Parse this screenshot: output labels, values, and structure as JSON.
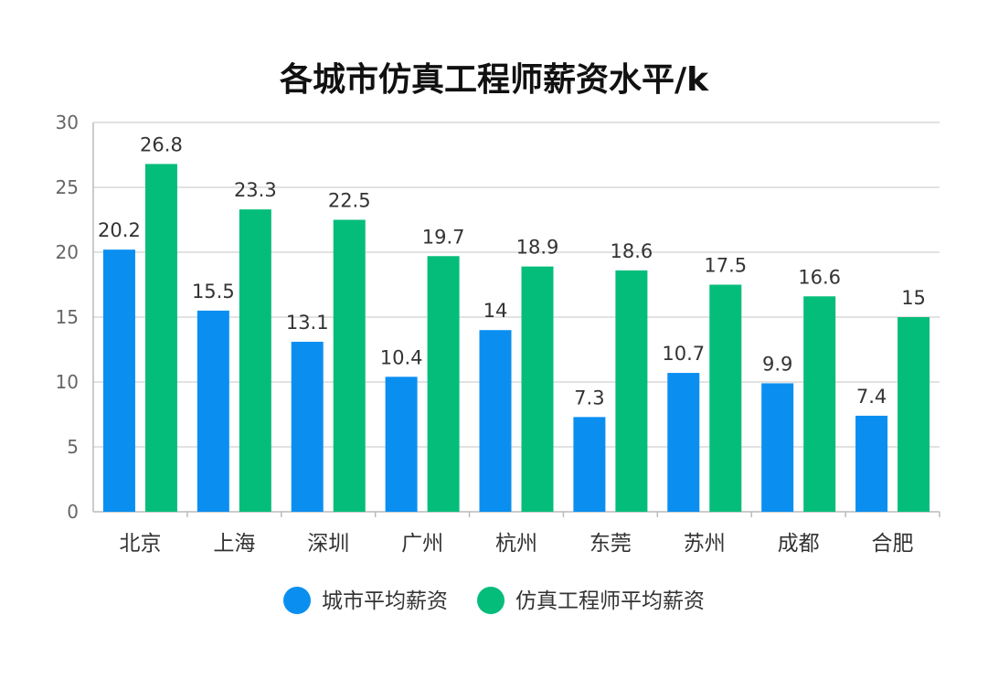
{
  "chart_data": {
    "type": "bar",
    "title": "各城市仿真工程师薪资水平/k",
    "categories": [
      "北京",
      "上海",
      "深圳",
      "广州",
      "杭州",
      "东莞",
      "苏州",
      "成都",
      "合肥"
    ],
    "series": [
      {
        "name": "城市平均薪资",
        "color": "#0a8ff1",
        "values": [
          20.2,
          15.5,
          13.1,
          10.4,
          14,
          7.3,
          10.7,
          9.9,
          7.4
        ]
      },
      {
        "name": "仿真工程师平均薪资",
        "color": "#05bd7a",
        "values": [
          26.8,
          23.3,
          22.5,
          19.7,
          18.9,
          18.6,
          17.5,
          16.6,
          15
        ]
      }
    ],
    "ylim": [
      0,
      30
    ],
    "yticks": [
      0,
      5,
      10,
      15,
      20,
      25,
      30
    ],
    "grid": true,
    "legend_position": "bottom",
    "xlabel": "",
    "ylabel": ""
  }
}
